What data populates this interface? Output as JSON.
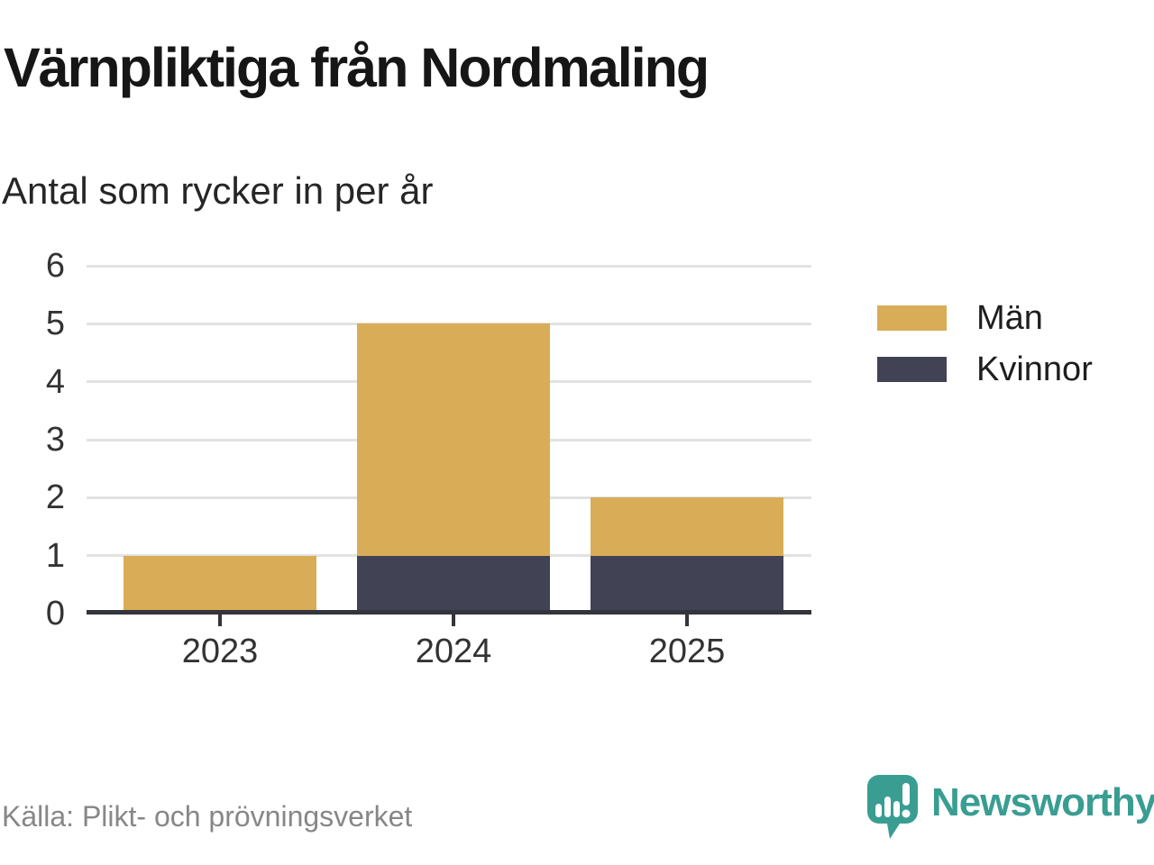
{
  "header": {
    "title": "Värnpliktiga från Nordmaling",
    "subtitle": "Antal som rycker in per år"
  },
  "chart_data": {
    "type": "bar",
    "stacked": true,
    "title": "Värnpliktiga från Nordmaling",
    "subtitle": "Antal som rycker in per år",
    "categories": [
      "2023",
      "2024",
      "2025"
    ],
    "series": [
      {
        "name": "Kvinnor",
        "color": "#414253",
        "values": [
          0,
          1,
          1
        ]
      },
      {
        "name": "Män",
        "color": "#d9ac57",
        "values": [
          1,
          4,
          1
        ]
      }
    ],
    "totals": [
      1,
      5,
      2
    ],
    "xlabel": "",
    "ylabel": "",
    "ylim": [
      0,
      6
    ],
    "yticks": [
      0,
      1,
      2,
      3,
      4,
      5,
      6
    ],
    "grid": true,
    "legend_position": "right",
    "legend_order": [
      "Män",
      "Kvinnor"
    ]
  },
  "footer": {
    "source": "Källa: Plikt- och prövningsverket",
    "brand": "Newsworthy"
  },
  "icons": {
    "brand_icon": "newsworthy-speech-bubble-chart-icon"
  },
  "colors": {
    "men": "#d9ac57",
    "women": "#414253",
    "teal": "#3a9d92",
    "grid": "#e2e2e2",
    "axis": "#34353c",
    "text": "#333333",
    "source_gray": "#878787",
    "title": "#161616"
  }
}
